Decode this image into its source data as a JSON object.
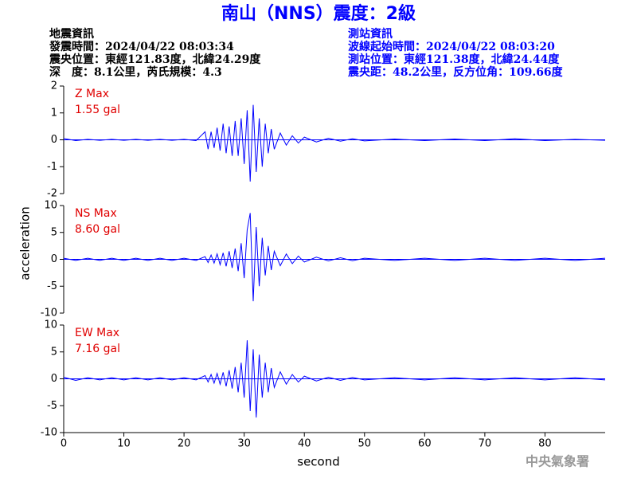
{
  "header": {
    "title": "南山（NNS）震度：2級",
    "left": [
      "地震資訊",
      "發震時間：2024/04/22 08:03:34",
      "震央位置：東經121.83度，北緯24.29度",
      "深　度：8.1公里，芮氏規模：4.3"
    ],
    "right": [
      "測站資訊",
      "波線起始時間：2024/04/22 08:03:20",
      "測站位置：東經121.38度，北緯24.44度",
      "震央距：48.2公里，反方位角：109.66度"
    ],
    "footer": "中央氣象署"
  },
  "chart_data": [
    {
      "type": "line",
      "annotation": [
        "Z Max",
        "1.55 gal"
      ],
      "color": "#0000ff",
      "xlim": [
        0,
        90
      ],
      "ylim": [
        -2,
        2
      ],
      "yticks": [
        -2,
        -1,
        0,
        1,
        2
      ],
      "x": [
        0,
        2,
        4,
        6,
        8,
        10,
        12,
        14,
        16,
        18,
        20,
        22,
        23.5,
        24,
        24.5,
        25,
        25.5,
        26,
        26.5,
        27,
        27.5,
        28,
        28.5,
        29,
        29.5,
        30,
        30.5,
        31,
        31.5,
        32,
        32.5,
        33,
        33.5,
        34,
        34.5,
        35,
        36,
        37,
        38,
        39,
        40,
        42,
        44,
        46,
        48,
        50,
        55,
        60,
        65,
        70,
        75,
        80,
        85,
        90
      ],
      "values": [
        0.05,
        -0.03,
        0.02,
        -0.02,
        0.02,
        -0.02,
        0.02,
        -0.02,
        0.02,
        -0.02,
        0.02,
        -0.03,
        0.3,
        -0.35,
        0.3,
        -0.3,
        0.45,
        -0.4,
        0.6,
        -0.5,
        0.5,
        -0.6,
        0.7,
        -0.6,
        0.8,
        -0.9,
        1.1,
        -1.55,
        1.3,
        -1.2,
        0.8,
        -1.0,
        0.6,
        -0.5,
        0.4,
        -0.35,
        0.25,
        -0.2,
        0.15,
        -0.12,
        0.1,
        -0.08,
        0.06,
        -0.05,
        0.04,
        -0.04,
        0.03,
        -0.03,
        0.03,
        -0.03,
        0.04,
        -0.03,
        0.02,
        -0.02
      ]
    },
    {
      "type": "line",
      "annotation": [
        "NS Max",
        "8.60 gal"
      ],
      "ylabel": "acceleration",
      "color": "#0000ff",
      "xlim": [
        0,
        90
      ],
      "ylim": [
        -10,
        10
      ],
      "yticks": [
        -10,
        -5,
        0,
        5,
        10
      ],
      "x": [
        0,
        2,
        4,
        6,
        8,
        10,
        12,
        14,
        16,
        18,
        20,
        22,
        23.5,
        24,
        24.5,
        25,
        25.5,
        26,
        26.5,
        27,
        27.5,
        28,
        28.5,
        29,
        29.5,
        30,
        30.5,
        31,
        31.5,
        32,
        32.5,
        33,
        33.5,
        34,
        34.5,
        35,
        36,
        37,
        38,
        39,
        40,
        42,
        44,
        46,
        48,
        50,
        55,
        60,
        65,
        70,
        75,
        80,
        85,
        90
      ],
      "values": [
        0.2,
        -0.2,
        0.2,
        -0.2,
        0.2,
        -0.2,
        0.2,
        -0.2,
        0.2,
        -0.2,
        0.2,
        -0.2,
        0.5,
        -0.6,
        0.8,
        -0.7,
        1.0,
        -1.0,
        1.2,
        -1.3,
        1.5,
        -1.6,
        2.0,
        -2.2,
        3.0,
        -3.5,
        5.5,
        8.6,
        -7.8,
        6.0,
        -5.0,
        4.0,
        -3.0,
        2.5,
        -2.0,
        1.5,
        -1.2,
        1.0,
        -0.8,
        0.6,
        -0.5,
        0.4,
        -0.3,
        0.3,
        -0.25,
        0.2,
        -0.2,
        0.2,
        -0.2,
        0.2,
        -0.2,
        0.2,
        -0.2,
        0.2
      ]
    },
    {
      "type": "line",
      "annotation": [
        "EW Max",
        "7.16 gal"
      ],
      "xlabel": "second",
      "color": "#0000ff",
      "xlim": [
        0,
        90
      ],
      "ylim": [
        -10,
        10
      ],
      "yticks": [
        -10,
        -5,
        0,
        5,
        10
      ],
      "xticks": [
        0,
        10,
        20,
        30,
        40,
        50,
        60,
        70,
        80
      ],
      "x": [
        0,
        2,
        4,
        6,
        8,
        10,
        12,
        14,
        16,
        18,
        20,
        22,
        23.5,
        24,
        24.5,
        25,
        25.5,
        26,
        26.5,
        27,
        27.5,
        28,
        28.5,
        29,
        29.5,
        30,
        30.5,
        31,
        31.5,
        32,
        32.5,
        33,
        33.5,
        34,
        34.5,
        35,
        36,
        37,
        38,
        39,
        40,
        42,
        44,
        46,
        48,
        50,
        55,
        60,
        65,
        70,
        75,
        80,
        85,
        90
      ],
      "values": [
        0.3,
        -0.3,
        0.2,
        -0.2,
        0.2,
        -0.2,
        0.2,
        -0.2,
        0.2,
        -0.2,
        0.2,
        -0.2,
        0.6,
        -0.6,
        0.8,
        -0.8,
        1.0,
        -1.0,
        1.2,
        -1.4,
        1.6,
        -1.8,
        2.2,
        -2.5,
        3.0,
        -3.5,
        7.16,
        -6.0,
        5.5,
        -7.2,
        4.5,
        -3.5,
        3.0,
        -2.5,
        2.0,
        -1.6,
        1.3,
        -1.0,
        0.8,
        -0.6,
        0.5,
        -0.4,
        0.3,
        -0.3,
        0.25,
        -0.2,
        0.2,
        -0.2,
        0.2,
        -0.2,
        0.2,
        -0.2,
        0.2,
        -0.2
      ]
    }
  ]
}
